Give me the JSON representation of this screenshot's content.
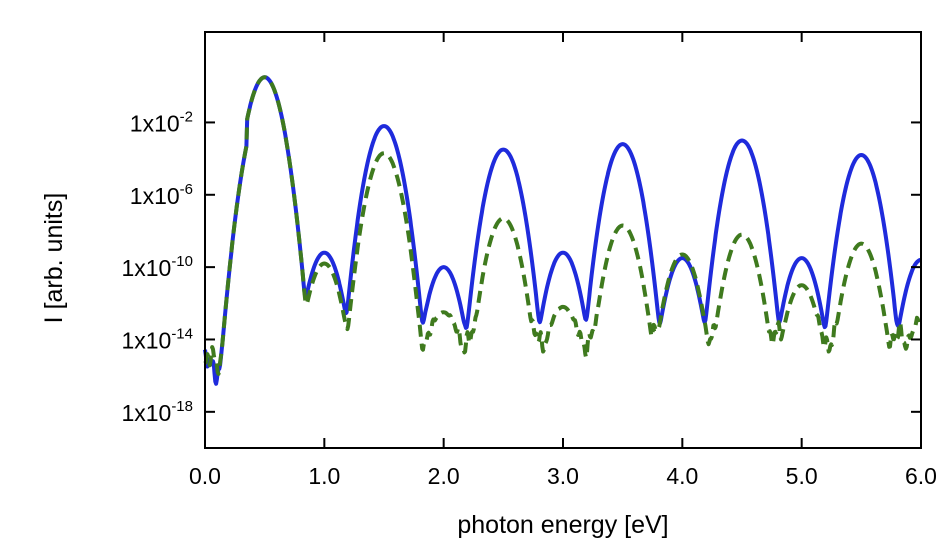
{
  "chart_data": {
    "type": "line",
    "xlabel": "photon energy [eV]",
    "ylabel": "I [arb. units]",
    "xlim": [
      0.0,
      6.0
    ],
    "ylim_log10": [
      -20,
      3
    ],
    "y_scale": "log",
    "grid": false,
    "legend": "none",
    "x_ticks": [
      {
        "value": 0.0,
        "label": "0.0"
      },
      {
        "value": 1.0,
        "label": "1.0"
      },
      {
        "value": 2.0,
        "label": "2.0"
      },
      {
        "value": 3.0,
        "label": "3.0"
      },
      {
        "value": 4.0,
        "label": "4.0"
      },
      {
        "value": 5.0,
        "label": "5.0"
      },
      {
        "value": 6.0,
        "label": "6.0"
      }
    ],
    "y_ticks": [
      {
        "value": 0.01,
        "base": "1x10",
        "exponent": "-2"
      },
      {
        "value": 1e-06,
        "base": "1x10",
        "exponent": "-6"
      },
      {
        "value": 1e-10,
        "base": "1x10",
        "exponent": "-10"
      },
      {
        "value": 1e-14,
        "base": "1x10",
        "exponent": "-14"
      },
      {
        "value": 1e-18,
        "base": "1x10",
        "exponent": "-18"
      }
    ],
    "series": [
      {
        "color": "#1f2bdc",
        "style": "solid",
        "peaks_log10": [
          {
            "x": 0.5,
            "y": 0.5
          },
          {
            "x": 1.0,
            "y": -9.2
          },
          {
            "x": 1.5,
            "y": -2.2
          },
          {
            "x": 2.0,
            "y": -10.0
          },
          {
            "x": 2.5,
            "y": -3.5
          },
          {
            "x": 3.0,
            "y": -9.2
          },
          {
            "x": 3.5,
            "y": -3.2
          },
          {
            "x": 4.0,
            "y": -9.5
          },
          {
            "x": 4.5,
            "y": -3.0
          },
          {
            "x": 5.0,
            "y": -9.5
          },
          {
            "x": 5.5,
            "y": -3.8
          },
          {
            "x": 6.0,
            "y": -9.6
          }
        ],
        "background_log10": -14.2
      },
      {
        "color": "#3f7a1e",
        "style": "dashed",
        "peaks_log10": [
          {
            "x": 0.5,
            "y": 0.5
          },
          {
            "x": 1.0,
            "y": -9.8
          },
          {
            "x": 1.5,
            "y": -3.7
          },
          {
            "x": 2.0,
            "y": -12.5
          },
          {
            "x": 2.5,
            "y": -7.3
          },
          {
            "x": 3.0,
            "y": -12.2
          },
          {
            "x": 3.5,
            "y": -7.7
          },
          {
            "x": 4.0,
            "y": -9.3
          },
          {
            "x": 4.5,
            "y": -8.2
          },
          {
            "x": 5.0,
            "y": -11.0
          },
          {
            "x": 5.5,
            "y": -8.7
          },
          {
            "x": 6.0,
            "y": -13.2
          }
        ],
        "background_log10": -14.0
      }
    ]
  }
}
